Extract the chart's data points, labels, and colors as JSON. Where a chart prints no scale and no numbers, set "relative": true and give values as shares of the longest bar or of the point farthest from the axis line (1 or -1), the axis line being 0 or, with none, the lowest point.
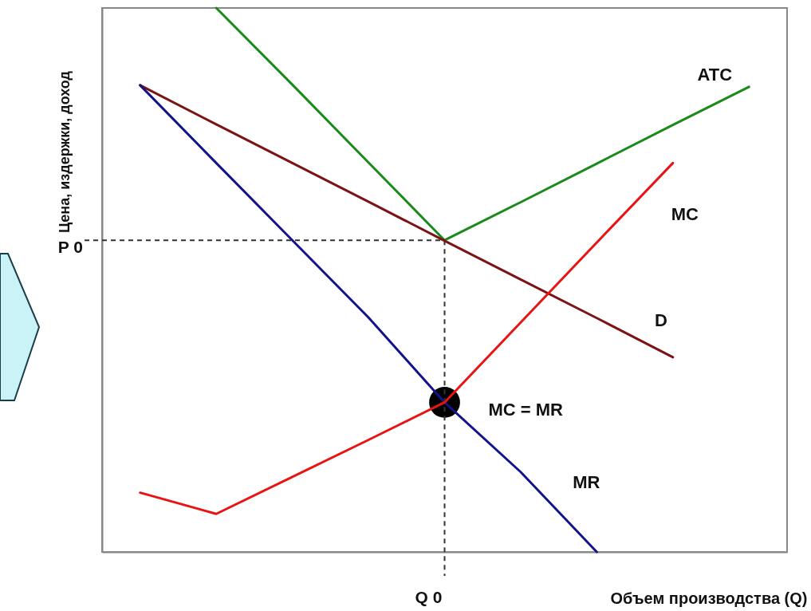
{
  "chart_data": {
    "type": "line",
    "relative": true,
    "xlabel": "Объем производства (Q)",
    "ylabel": "Цена, издержки, доход",
    "categories": [
      null,
      null,
      null,
      null,
      null,
      null,
      null,
      null,
      null
    ],
    "series": [
      {
        "name": "ATC",
        "color": "#1a8a1a",
        "values": [
          null,
          1.0,
          0.859,
          0.716,
          0.573,
          0.643,
          0.714,
          0.785,
          0.855
        ]
      },
      {
        "name": "D",
        "color": "#7b1414",
        "values": [
          0.858,
          0.786,
          0.715,
          0.644,
          0.572,
          0.501,
          0.43,
          0.358,
          null
        ]
      },
      {
        "name": "MR",
        "color": "#14148a",
        "values": [
          0.858,
          0.715,
          0.573,
          0.431,
          0.275,
          0.147,
          0.0,
          null,
          null
        ]
      },
      {
        "name": "MC",
        "color": "#e81414",
        "values": [
          0.109,
          0.07,
          0.138,
          0.206,
          0.275,
          0.422,
          0.569,
          0.715,
          null
        ]
      }
    ],
    "ref_lines": [
      {
        "axis": "y",
        "value": 0.573,
        "label": "P 0",
        "line_style": "dashed",
        "color": "#333333"
      },
      {
        "axis": "x",
        "label": "Q 0",
        "line_style": "dashed",
        "color": "#333333"
      }
    ],
    "annotations": [
      "MC = MR"
    ]
  }
}
